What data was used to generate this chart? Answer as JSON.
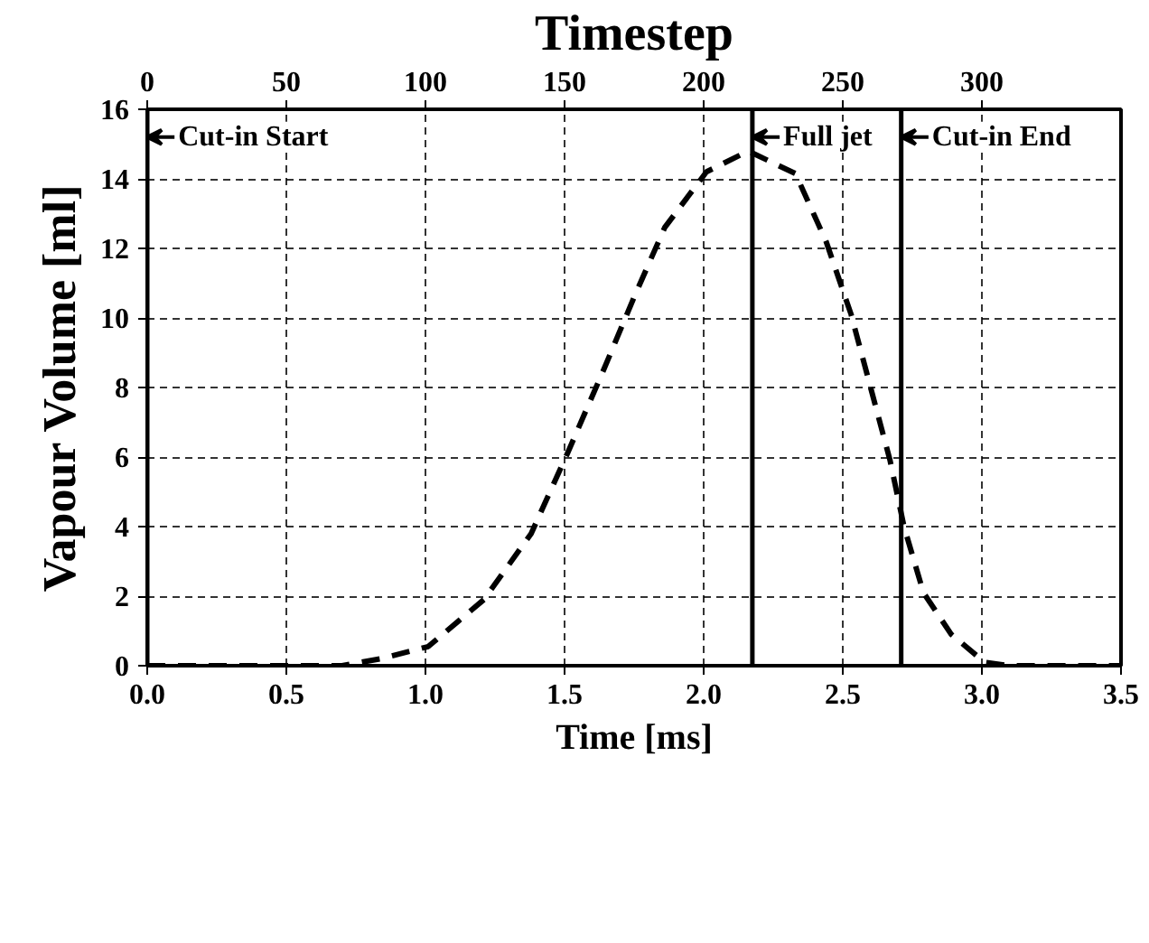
{
  "chart_data": {
    "type": "line",
    "xlabel": "Time [ms]",
    "ylabel": "Vapour Volume [ml]",
    "x2label": "Timestep",
    "x": [
      0,
      0.7,
      0.84,
      1.01,
      1.21,
      1.38,
      1.51,
      1.64,
      1.75,
      1.86,
      2.01,
      2.16,
      2.33,
      2.44,
      2.53,
      2.6,
      2.67,
      2.72,
      2.79,
      2.89,
      3.01,
      3.1,
      3.5
    ],
    "series": [
      {
        "color": "#000000",
        "values": [
          0,
          0,
          0.2,
          0.55,
          1.9,
          3.8,
          6.1,
          8.5,
          10.6,
          12.6,
          14.2,
          14.8,
          14.15,
          12.2,
          10.1,
          8.0,
          5.9,
          4.0,
          2.1,
          0.9,
          0.1,
          0,
          0
        ]
      }
    ],
    "xlim": [
      0,
      3.5
    ],
    "xticks": [
      {
        "value": 0,
        "label": "0.0"
      },
      {
        "value": 0.5,
        "label": "0.5"
      },
      {
        "value": 1,
        "label": "1.0"
      },
      {
        "value": 1.5,
        "label": "1.5"
      },
      {
        "value": 2,
        "label": "2.0"
      },
      {
        "value": 2.5,
        "label": "2.5"
      },
      {
        "value": 3,
        "label": "3.0"
      },
      {
        "value": 3.5,
        "label": "3.5"
      }
    ],
    "ylim": [
      0,
      16
    ],
    "yticks": [
      0,
      2,
      4,
      6,
      8,
      10,
      12,
      14,
      16
    ],
    "x2lim": [
      0,
      350
    ],
    "x2ticks": [
      0,
      50,
      100,
      150,
      200,
      250,
      300
    ],
    "grid": true,
    "line_style": "dashed",
    "ref_lines": [
      {
        "axis": "x",
        "value": 0,
        "label": "Cut-in Start",
        "color": "#000000"
      },
      {
        "axis": "x",
        "value": 2.175,
        "label": "Full jet",
        "color": "#000000"
      },
      {
        "axis": "x",
        "value": 2.71,
        "label": "Cut-in End",
        "color": "#000000"
      }
    ]
  }
}
